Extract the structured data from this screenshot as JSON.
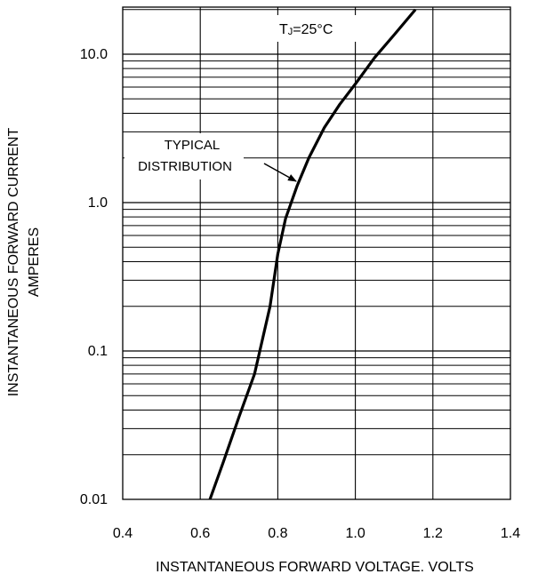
{
  "chart_data": {
    "type": "line",
    "title": "",
    "xlabel": "INSTANTANEOUS FORWARD VOLTAGE. VOLTS",
    "ylabel": [
      "INSTANTANEOUS FORWARD CURRENT",
      "AMPERES"
    ],
    "xlim": [
      0.4,
      1.4
    ],
    "ylim": [
      0.01,
      20
    ],
    "xscale": "linear",
    "yscale": "log",
    "grid": true,
    "x_ticks": [
      0.4,
      0.6,
      0.8,
      1.0,
      1.2,
      1.4
    ],
    "x_tick_labels": [
      "0.4",
      "0.6",
      "0.8",
      "1.0",
      "1.2",
      "1.4"
    ],
    "y_ticks": [
      0.01,
      0.1,
      1.0,
      10.0
    ],
    "y_tick_labels": [
      "0.01",
      "0.1",
      "1.0",
      "10.0"
    ],
    "series": [
      {
        "x": [
          0.625,
          0.66,
          0.7,
          0.74,
          0.78,
          0.8,
          0.82,
          0.85,
          0.88,
          0.92,
          0.96,
          1.0,
          1.05,
          1.1,
          1.155
        ],
        "y": [
          0.01,
          0.018,
          0.036,
          0.07,
          0.2,
          0.45,
          0.78,
          1.3,
          2.0,
          3.2,
          4.6,
          6.3,
          9.5,
          13.5,
          20
        ]
      }
    ],
    "annotations": [
      {
        "text": "T",
        "subscript": "J",
        "suffix": "=25°C"
      },
      {
        "lines": [
          "TYPICAL",
          "DISTRIBUTION"
        ]
      }
    ],
    "line_color": "#000000",
    "grid_color": "#000000",
    "background": "#ffffff"
  }
}
